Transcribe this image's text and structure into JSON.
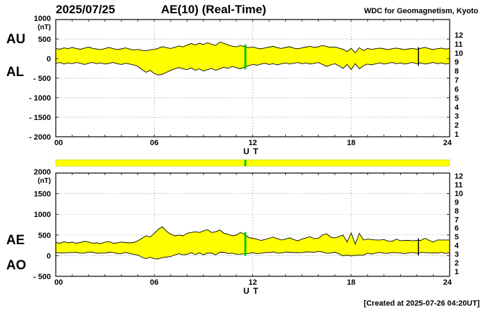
{
  "header": {
    "date": "2025/07/25",
    "title": "AE(10) (Real-Time)",
    "source": "WDC for Geomagnetism, Kyoto"
  },
  "footer": {
    "created": "[Created at 2025-07-26 04:20UT]"
  },
  "station_numbers": {
    "labels": [
      "12",
      "11",
      "10",
      "9",
      "8",
      "7",
      "6",
      "5",
      "4",
      "3",
      "2",
      "1"
    ],
    "colors": [
      "#e60000",
      "#ff3300",
      "#ff9900",
      "#ffdc00",
      "#00b400",
      "#00b4d2",
      "#0000e6",
      "#7828c8",
      "#dc14b4",
      "#3c3c3c",
      "#8c8c8c",
      "#c8c8c8"
    ]
  },
  "availability_bar": {
    "color": "#ffff00",
    "border_color": "#c8c800",
    "marker_t": 11.55,
    "marker_color": "#00c800"
  },
  "chart_data": [
    {
      "type": "area",
      "title": "AU / AL",
      "panel": "upper",
      "ylabel": "(nT)",
      "xlabel": "U T",
      "ylim": [
        -2000,
        1000
      ],
      "yticks": [
        1000,
        500,
        0,
        -500,
        -1000,
        -1500,
        -2000
      ],
      "ytick_labels": [
        "1000",
        "500",
        "0",
        "- 500",
        "- 1000",
        "- 1500",
        "- 2000"
      ],
      "xlim": [
        0,
        24
      ],
      "xticks": [
        0,
        6,
        12,
        18,
        24
      ],
      "xtick_labels": [
        "00",
        "06",
        "12",
        "18",
        "24"
      ],
      "grid": true,
      "fill_color": "#ffff00",
      "line_color": "#000000",
      "x": [
        0,
        0.25,
        0.5,
        0.75,
        1,
        1.25,
        1.5,
        1.75,
        2,
        2.25,
        2.5,
        2.75,
        3,
        3.25,
        3.5,
        3.75,
        4,
        4.25,
        4.5,
        4.75,
        5,
        5.25,
        5.5,
        5.75,
        6,
        6.25,
        6.5,
        6.75,
        7,
        7.25,
        7.5,
        7.75,
        8,
        8.25,
        8.5,
        8.75,
        9,
        9.25,
        9.5,
        9.75,
        10,
        10.25,
        10.5,
        10.75,
        11,
        11.25,
        11.5,
        11.75,
        12,
        12.25,
        12.5,
        12.75,
        13,
        13.25,
        13.5,
        13.75,
        14,
        14.25,
        14.5,
        14.75,
        15,
        15.25,
        15.5,
        15.75,
        16,
        16.25,
        16.5,
        16.75,
        17,
        17.25,
        17.5,
        17.75,
        18,
        18.25,
        18.5,
        18.75,
        19,
        19.25,
        19.5,
        19.75,
        20,
        20.25,
        20.5,
        20.75,
        21,
        21.25,
        21.5,
        21.75,
        22,
        22.25,
        22.5,
        22.75,
        23,
        23.25,
        23.5,
        23.75,
        24
      ],
      "series": [
        {
          "name": "AU",
          "values": [
            260,
            240,
            275,
            255,
            285,
            260,
            240,
            270,
            295,
            265,
            245,
            230,
            260,
            285,
            255,
            230,
            250,
            275,
            245,
            220,
            235,
            210,
            200,
            225,
            235,
            265,
            305,
            280,
            260,
            290,
            325,
            300,
            345,
            385,
            350,
            395,
            360,
            405,
            370,
            340,
            425,
            390,
            350,
            320,
            300,
            335,
            310,
            280,
            300,
            270,
            250,
            275,
            295,
            315,
            280,
            260,
            285,
            305,
            270,
            250,
            275,
            295,
            315,
            285,
            305,
            335,
            310,
            285,
            300,
            270,
            240,
            180,
            265,
            150,
            280,
            205,
            260,
            235,
            255,
            270,
            250,
            230,
            255,
            270,
            250,
            230,
            250,
            260,
            240,
            265,
            285,
            255,
            230,
            255,
            270,
            245,
            260
          ]
        },
        {
          "name": "AL",
          "values": [
            -120,
            -100,
            -140,
            -110,
            -130,
            -100,
            -120,
            -150,
            -120,
            -100,
            -130,
            -110,
            -140,
            -120,
            -100,
            -130,
            -150,
            -120,
            -140,
            -160,
            -200,
            -280,
            -350,
            -300,
            -380,
            -420,
            -400,
            -350,
            -300,
            -260,
            -230,
            -260,
            -280,
            -240,
            -300,
            -260,
            -320,
            -280,
            -250,
            -300,
            -260,
            -220,
            -250,
            -200,
            -230,
            -260,
            -220,
            -180,
            -150,
            -170,
            -140,
            -120,
            -150,
            -130,
            -160,
            -130,
            -110,
            -140,
            -120,
            -100,
            -130,
            -110,
            -140,
            -120,
            -100,
            -150,
            -200,
            -160,
            -130,
            -180,
            -250,
            -150,
            -280,
            -130,
            -260,
            -180,
            -140,
            -160,
            -130,
            -110,
            -140,
            -120,
            -100,
            -130,
            -110,
            -140,
            -120,
            -100,
            -130,
            -110,
            -140,
            -120,
            -100,
            -130,
            -110,
            -140,
            -120
          ]
        }
      ],
      "markers": [
        {
          "t": 11.55,
          "color": "#00c800",
          "width": 3
        },
        {
          "t": 22.1,
          "color": "#000000",
          "width": 1.5
        }
      ]
    },
    {
      "type": "area",
      "title": "AE / AO",
      "panel": "lower",
      "ylabel": "(nT)",
      "xlabel": "U T",
      "ylim": [
        -500,
        2000
      ],
      "yticks": [
        2000,
        1500,
        1000,
        500,
        0,
        -500
      ],
      "ytick_labels": [
        "2000",
        "1500",
        "1000",
        "500",
        "0",
        "- 500"
      ],
      "xlim": [
        0,
        24
      ],
      "xticks": [
        0,
        6,
        12,
        18,
        24
      ],
      "xtick_labels": [
        "00",
        "06",
        "12",
        "18",
        "24"
      ],
      "grid": true,
      "fill_color": "#ffff00",
      "line_color": "#000000",
      "x": [
        0,
        0.25,
        0.5,
        0.75,
        1,
        1.25,
        1.5,
        1.75,
        2,
        2.25,
        2.5,
        2.75,
        3,
        3.25,
        3.5,
        3.75,
        4,
        4.25,
        4.5,
        4.75,
        5,
        5.25,
        5.5,
        5.75,
        6,
        6.25,
        6.5,
        6.75,
        7,
        7.25,
        7.5,
        7.75,
        8,
        8.25,
        8.5,
        8.75,
        9,
        9.25,
        9.5,
        9.75,
        10,
        10.25,
        10.5,
        10.75,
        11,
        11.25,
        11.5,
        11.75,
        12,
        12.25,
        12.5,
        12.75,
        13,
        13.25,
        13.5,
        13.75,
        14,
        14.25,
        14.5,
        14.75,
        15,
        15.25,
        15.5,
        15.75,
        16,
        16.25,
        16.5,
        16.75,
        17,
        17.25,
        17.5,
        17.75,
        18,
        18.25,
        18.5,
        18.75,
        19,
        19.25,
        19.5,
        19.75,
        20,
        20.25,
        20.5,
        20.75,
        21,
        21.25,
        21.5,
        21.75,
        22,
        22.25,
        22.5,
        22.75,
        23,
        23.25,
        23.5,
        23.75,
        24
      ],
      "series": [
        {
          "name": "AE",
          "values": [
            320,
            300,
            340,
            310,
            330,
            300,
            320,
            350,
            330,
            300,
            310,
            290,
            330,
            340,
            300,
            310,
            330,
            320,
            310,
            320,
            360,
            420,
            480,
            450,
            540,
            640,
            700,
            590,
            520,
            480,
            500,
            480,
            540,
            560,
            580,
            560,
            600,
            630,
            560,
            580,
            620,
            540,
            520,
            480,
            500,
            560,
            520,
            440,
            420,
            400,
            370,
            390,
            420,
            450,
            410,
            380,
            400,
            430,
            390,
            360,
            400,
            430,
            460,
            410,
            420,
            500,
            530,
            450,
            430,
            460,
            500,
            330,
            550,
            280,
            540,
            380,
            400,
            390,
            380,
            380,
            390,
            350,
            350,
            400,
            360,
            370,
            370,
            360,
            370,
            370,
            420,
            370,
            330,
            380,
            380,
            380,
            380
          ]
        },
        {
          "name": "AO",
          "values": [
            70,
            70,
            68,
            72,
            77,
            80,
            60,
            60,
            87,
            82,
            57,
            60,
            60,
            82,
            77,
            50,
            50,
            77,
            52,
            30,
            17,
            -35,
            -75,
            -37,
            -72,
            -77,
            -47,
            -35,
            -20,
            15,
            47,
            20,
            32,
            72,
            25,
            67,
            20,
            62,
            60,
            20,
            82,
            85,
            50,
            60,
            35,
            37,
            45,
            50,
            75,
            50,
            55,
            77,
            72,
            92,
            60,
            65,
            87,
            82,
            75,
            75,
            72,
            92,
            87,
            82,
            102,
            92,
            55,
            62,
            85,
            45,
            -5,
            15,
            -7,
            10,
            10,
            12,
            60,
            37,
            62,
            80,
            55,
            55,
            77,
            70,
            70,
            45,
            65,
            80,
            55,
            77,
            72,
            67,
            65,
            62,
            80,
            52,
            70
          ]
        }
      ],
      "markers": [
        {
          "t": 11.55,
          "color": "#00c800",
          "width": 3
        },
        {
          "t": 22.1,
          "color": "#000000",
          "width": 1.5
        }
      ]
    }
  ]
}
